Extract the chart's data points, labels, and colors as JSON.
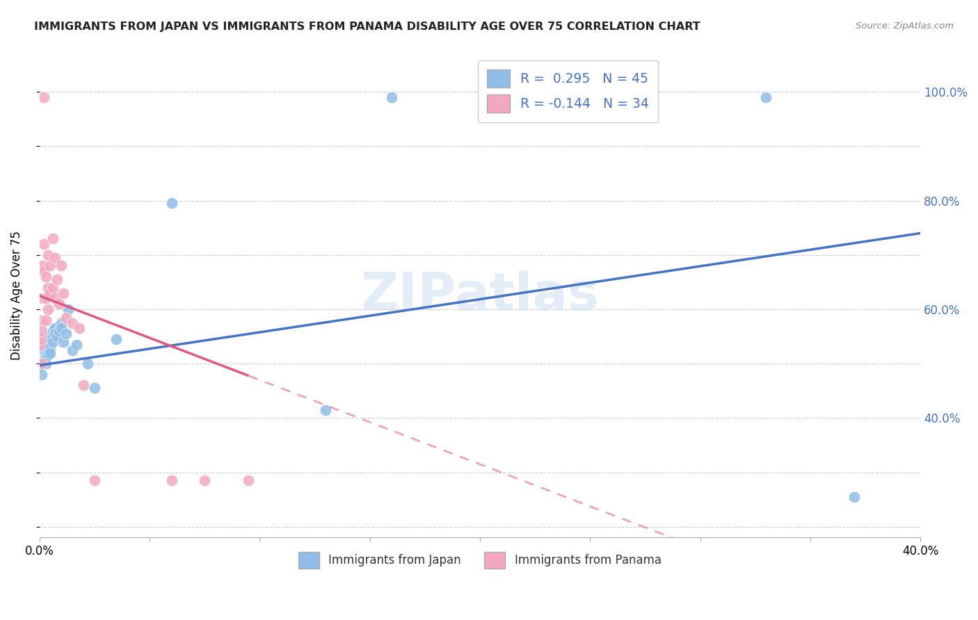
{
  "title": "IMMIGRANTS FROM JAPAN VS IMMIGRANTS FROM PANAMA DISABILITY AGE OVER 75 CORRELATION CHART",
  "source": "Source: ZipAtlas.com",
  "ylabel": "Disability Age Over 75",
  "legend_r_japan": " 0.295",
  "legend_n_japan": "45",
  "legend_r_panama": "-0.144",
  "legend_n_panama": "34",
  "legend_label_japan": "Immigrants from Japan",
  "legend_label_panama": "Immigrants from Panama",
  "japan_color": "#90BEE8",
  "panama_color": "#F4A8C0",
  "japan_trend_color": "#4472C4",
  "panama_trend_color": "#E05880",
  "watermark": "ZIPatlas",
  "xmin": 0.0,
  "xmax": 0.4,
  "ymin": 0.18,
  "ymax": 1.07,
  "right_yticks": [
    0.4,
    0.6,
    0.8,
    1.0
  ],
  "right_ytick_labels": [
    "40.0%",
    "60.0%",
    "80.0%",
    "100.0%"
  ],
  "japan_x": [
    0.0005,
    0.0007,
    0.001,
    0.001,
    0.001,
    0.0015,
    0.002,
    0.002,
    0.002,
    0.0025,
    0.003,
    0.003,
    0.003,
    0.003,
    0.003,
    0.004,
    0.004,
    0.004,
    0.004,
    0.005,
    0.005,
    0.005,
    0.005,
    0.006,
    0.006,
    0.006,
    0.007,
    0.007,
    0.008,
    0.009,
    0.01,
    0.01,
    0.011,
    0.012,
    0.013,
    0.015,
    0.017,
    0.022,
    0.025,
    0.035,
    0.06,
    0.13,
    0.16,
    0.33,
    0.37
  ],
  "japan_y": [
    0.505,
    0.495,
    0.52,
    0.5,
    0.48,
    0.515,
    0.525,
    0.51,
    0.5,
    0.515,
    0.54,
    0.53,
    0.52,
    0.51,
    0.5,
    0.545,
    0.535,
    0.525,
    0.515,
    0.55,
    0.54,
    0.53,
    0.52,
    0.56,
    0.55,
    0.54,
    0.565,
    0.555,
    0.55,
    0.56,
    0.575,
    0.565,
    0.54,
    0.555,
    0.6,
    0.525,
    0.535,
    0.5,
    0.455,
    0.545,
    0.795,
    0.415,
    0.99,
    0.99,
    0.255
  ],
  "panama_x": [
    0.0003,
    0.0005,
    0.001,
    0.001,
    0.001,
    0.0015,
    0.0015,
    0.002,
    0.002,
    0.002,
    0.003,
    0.003,
    0.003,
    0.004,
    0.004,
    0.004,
    0.005,
    0.005,
    0.006,
    0.006,
    0.007,
    0.007,
    0.008,
    0.009,
    0.01,
    0.011,
    0.012,
    0.015,
    0.018,
    0.02,
    0.025,
    0.06,
    0.075,
    0.095
  ],
  "panama_y": [
    0.535,
    0.545,
    0.58,
    0.56,
    0.5,
    0.68,
    0.62,
    0.72,
    0.67,
    0.99,
    0.66,
    0.62,
    0.58,
    0.7,
    0.64,
    0.6,
    0.68,
    0.63,
    0.73,
    0.64,
    0.695,
    0.62,
    0.655,
    0.61,
    0.68,
    0.63,
    0.585,
    0.575,
    0.565,
    0.46,
    0.285,
    0.285,
    0.285,
    0.285
  ]
}
